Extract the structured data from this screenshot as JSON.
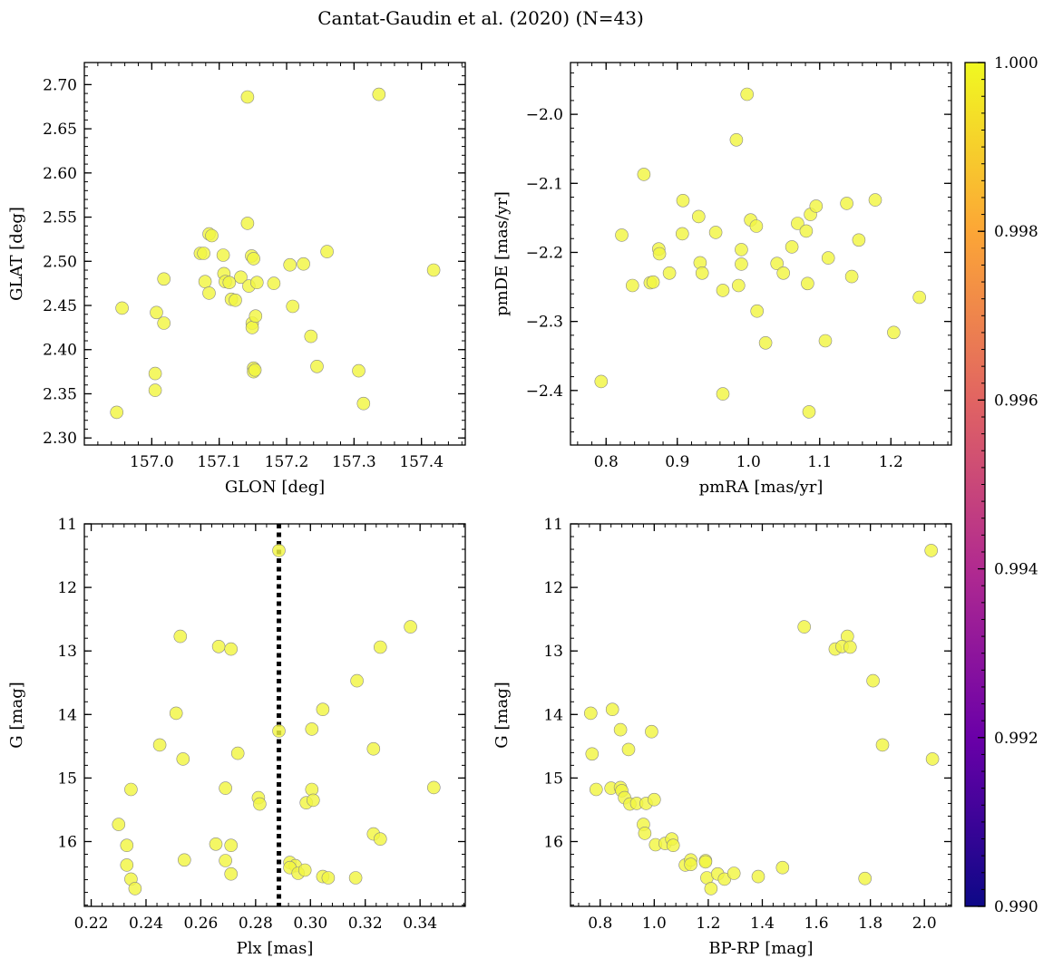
{
  "chart_data": {
    "type": "scatter",
    "title": "Cantat-Gaudin et al. (2020) (N=43)",
    "marker_color": "#f2f542",
    "marker_edge_color": "#888888",
    "colorbar": {
      "range": [
        0.99,
        1.0
      ],
      "ticks": [
        0.99,
        0.992,
        0.994,
        0.996,
        0.998,
        1.0
      ],
      "tick_labels": [
        "0.990",
        "0.992",
        "0.994",
        "0.996",
        "0.998",
        "1.000"
      ],
      "colormap": [
        "#0d0887",
        "#6a00a8",
        "#b12a90",
        "#e16462",
        "#fca636",
        "#f0f921"
      ]
    },
    "panels": [
      {
        "xlabel": "GLON [deg]",
        "ylabel": "GLAT [deg]",
        "xlim": [
          156.9,
          157.465
        ],
        "ylim": [
          2.292,
          2.725
        ],
        "y_inverted": false,
        "xticks": [
          157.0,
          157.1,
          157.2,
          157.3,
          157.4
        ],
        "xtick_labels": [
          "157.0",
          "157.1",
          "157.2",
          "157.3",
          "157.4"
        ],
        "yticks": [
          2.3,
          2.35,
          2.4,
          2.45,
          2.5,
          2.55,
          2.6,
          2.65,
          2.7
        ],
        "ytick_labels": [
          "2.30",
          "2.35",
          "2.40",
          "2.45",
          "2.50",
          "2.55",
          "2.60",
          "2.65",
          "2.70"
        ],
        "x_minor_step": 0.02,
        "y_minor_step": 0.01,
        "vline": null,
        "points": [
          [
            157.142,
            2.686
          ],
          [
            157.337,
            2.689
          ],
          [
            156.956,
            2.447
          ],
          [
            157.007,
            2.442
          ],
          [
            157.018,
            2.48
          ],
          [
            157.018,
            2.43
          ],
          [
            157.005,
            2.373
          ],
          [
            157.005,
            2.354
          ],
          [
            156.948,
            2.329
          ],
          [
            157.072,
            2.509
          ],
          [
            157.077,
            2.509
          ],
          [
            157.085,
            2.531
          ],
          [
            157.089,
            2.529
          ],
          [
            157.079,
            2.477
          ],
          [
            157.085,
            2.464
          ],
          [
            157.106,
            2.507
          ],
          [
            157.107,
            2.486
          ],
          [
            157.109,
            2.477
          ],
          [
            157.115,
            2.476
          ],
          [
            157.118,
            2.457
          ],
          [
            157.124,
            2.456
          ],
          [
            157.132,
            2.482
          ],
          [
            157.142,
            2.543
          ],
          [
            157.144,
            2.472
          ],
          [
            157.148,
            2.506
          ],
          [
            157.151,
            2.503
          ],
          [
            157.149,
            2.43
          ],
          [
            157.149,
            2.425
          ],
          [
            157.154,
            2.438
          ],
          [
            157.156,
            2.476
          ],
          [
            157.181,
            2.475
          ],
          [
            157.151,
            2.379
          ],
          [
            157.151,
            2.375
          ],
          [
            157.205,
            2.496
          ],
          [
            157.209,
            2.449
          ],
          [
            157.225,
            2.497
          ],
          [
            157.236,
            2.415
          ],
          [
            157.245,
            2.381
          ],
          [
            157.26,
            2.511
          ],
          [
            157.307,
            2.376
          ],
          [
            157.314,
            2.339
          ],
          [
            157.418,
            2.49
          ],
          [
            157.153,
            2.377
          ]
        ]
      },
      {
        "xlabel": "pmRA [mas/yr]",
        "ylabel": "pmDE [mas/yr]",
        "xlim": [
          0.75,
          1.285
        ],
        "ylim": [
          -2.479,
          -1.925
        ],
        "y_inverted": false,
        "xticks": [
          0.8,
          0.9,
          1.0,
          1.1,
          1.2
        ],
        "xtick_labels": [
          "0.8",
          "0.9",
          "1.0",
          "1.1",
          "1.2"
        ],
        "yticks": [
          -2.4,
          -2.3,
          -2.2,
          -2.1,
          -2.0
        ],
        "ytick_labels": [
          "−2.4",
          "−2.3",
          "−2.2",
          "−2.1",
          "−2.0"
        ],
        "x_minor_step": 0.02,
        "y_minor_step": 0.02,
        "vline": null,
        "points": [
          [
            0.998,
            -1.971
          ],
          [
            0.983,
            -2.037
          ],
          [
            0.853,
            -2.087
          ],
          [
            0.908,
            -2.125
          ],
          [
            0.822,
            -2.175
          ],
          [
            0.837,
            -2.248
          ],
          [
            0.862,
            -2.244
          ],
          [
            0.866,
            -2.243
          ],
          [
            0.874,
            -2.195
          ],
          [
            0.875,
            -2.202
          ],
          [
            0.889,
            -2.23
          ],
          [
            0.907,
            -2.173
          ],
          [
            0.93,
            -2.148
          ],
          [
            0.932,
            -2.215
          ],
          [
            0.935,
            -2.23
          ],
          [
            0.954,
            -2.171
          ],
          [
            0.964,
            -2.255
          ],
          [
            0.986,
            -2.248
          ],
          [
            0.99,
            -2.196
          ],
          [
            0.99,
            -2.217
          ],
          [
            1.003,
            -2.153
          ],
          [
            1.011,
            -2.162
          ],
          [
            1.012,
            -2.285
          ],
          [
            1.024,
            -2.331
          ],
          [
            1.04,
            -2.216
          ],
          [
            1.049,
            -2.23
          ],
          [
            1.061,
            -2.192
          ],
          [
            1.069,
            -2.158
          ],
          [
            1.081,
            -2.169
          ],
          [
            1.083,
            -2.245
          ],
          [
            1.087,
            -2.145
          ],
          [
            1.095,
            -2.133
          ],
          [
            1.108,
            -2.328
          ],
          [
            1.112,
            -2.208
          ],
          [
            1.138,
            -2.129
          ],
          [
            1.145,
            -2.235
          ],
          [
            1.155,
            -2.182
          ],
          [
            1.178,
            -2.124
          ],
          [
            1.204,
            -2.316
          ],
          [
            1.24,
            -2.265
          ],
          [
            0.793,
            -2.387
          ],
          [
            0.964,
            -2.405
          ],
          [
            1.085,
            -2.431
          ]
        ]
      },
      {
        "xlabel": "Plx [mas]",
        "ylabel": "G [mag]",
        "xlim": [
          0.2175,
          0.3565
        ],
        "ylim": [
          11.0,
          17.02
        ],
        "y_inverted": true,
        "xticks": [
          0.22,
          0.24,
          0.26,
          0.28,
          0.3,
          0.32,
          0.34
        ],
        "xtick_labels": [
          "0.22",
          "0.24",
          "0.26",
          "0.28",
          "0.30",
          "0.32",
          "0.34"
        ],
        "yticks": [
          11,
          12,
          13,
          14,
          15,
          16
        ],
        "ytick_labels": [
          "11",
          "12",
          "13",
          "14",
          "15",
          "16"
        ],
        "x_minor_step": 0.004,
        "y_minor_step": 0.2,
        "vline": 0.2885,
        "points": [
          [
            0.2885,
            11.42
          ],
          [
            0.3365,
            12.62
          ],
          [
            0.2525,
            12.77
          ],
          [
            0.2665,
            12.93
          ],
          [
            0.271,
            12.97
          ],
          [
            0.3255,
            12.94
          ],
          [
            0.317,
            13.47
          ],
          [
            0.3045,
            13.92
          ],
          [
            0.251,
            13.98
          ],
          [
            0.2885,
            14.26
          ],
          [
            0.3005,
            14.23
          ],
          [
            0.245,
            14.48
          ],
          [
            0.2535,
            14.7
          ],
          [
            0.2735,
            14.61
          ],
          [
            0.323,
            14.54
          ],
          [
            0.269,
            15.16
          ],
          [
            0.2345,
            15.18
          ],
          [
            0.3005,
            15.18
          ],
          [
            0.345,
            15.15
          ],
          [
            0.281,
            15.31
          ],
          [
            0.2815,
            15.41
          ],
          [
            0.2985,
            15.39
          ],
          [
            0.301,
            15.35
          ],
          [
            0.23,
            15.73
          ],
          [
            0.233,
            16.06
          ],
          [
            0.2655,
            16.04
          ],
          [
            0.271,
            16.06
          ],
          [
            0.323,
            15.88
          ],
          [
            0.3255,
            15.96
          ],
          [
            0.254,
            16.29
          ],
          [
            0.269,
            16.3
          ],
          [
            0.2925,
            16.33
          ],
          [
            0.2945,
            16.38
          ],
          [
            0.2925,
            16.41
          ],
          [
            0.233,
            16.37
          ],
          [
            0.271,
            16.51
          ],
          [
            0.2955,
            16.5
          ],
          [
            0.3045,
            16.55
          ],
          [
            0.3065,
            16.57
          ],
          [
            0.3165,
            16.57
          ],
          [
            0.2345,
            16.59
          ],
          [
            0.236,
            16.74
          ],
          [
            0.298,
            16.45
          ]
        ]
      },
      {
        "xlabel": "BP-RP [mag]",
        "ylabel": "G [mag]",
        "xlim": [
          0.69,
          2.1
        ],
        "ylim": [
          11.0,
          17.02
        ],
        "y_inverted": true,
        "xticks": [
          0.8,
          1.0,
          1.2,
          1.4,
          1.6,
          1.8,
          2.0
        ],
        "xtick_labels": [
          "0.8",
          "1.0",
          "1.2",
          "1.4",
          "1.6",
          "1.8",
          "2.0"
        ],
        "yticks": [
          11,
          12,
          13,
          14,
          15,
          16
        ],
        "ytick_labels": [
          "11",
          "12",
          "13",
          "14",
          "15",
          "16"
        ],
        "x_minor_step": 0.04,
        "y_minor_step": 0.2,
        "vline": null,
        "points": [
          [
            2.025,
            11.42
          ],
          [
            1.555,
            12.62
          ],
          [
            1.715,
            12.77
          ],
          [
            1.67,
            12.97
          ],
          [
            1.695,
            12.93
          ],
          [
            1.725,
            12.94
          ],
          [
            1.81,
            13.47
          ],
          [
            0.845,
            13.92
          ],
          [
            0.765,
            13.98
          ],
          [
            0.875,
            14.24
          ],
          [
            0.99,
            14.27
          ],
          [
            0.77,
            14.62
          ],
          [
            0.905,
            14.55
          ],
          [
            1.845,
            14.48
          ],
          [
            2.03,
            14.7
          ],
          [
            0.785,
            15.18
          ],
          [
            0.84,
            15.16
          ],
          [
            0.875,
            15.15
          ],
          [
            0.88,
            15.2
          ],
          [
            0.89,
            15.31
          ],
          [
            0.91,
            15.41
          ],
          [
            0.935,
            15.4
          ],
          [
            0.97,
            15.4
          ],
          [
            1.0,
            15.34
          ],
          [
            0.96,
            15.73
          ],
          [
            0.965,
            15.87
          ],
          [
            1.005,
            16.05
          ],
          [
            1.04,
            16.03
          ],
          [
            1.065,
            15.96
          ],
          [
            1.07,
            16.06
          ],
          [
            1.115,
            16.37
          ],
          [
            1.135,
            16.29
          ],
          [
            1.135,
            16.36
          ],
          [
            1.19,
            16.3
          ],
          [
            1.19,
            16.32
          ],
          [
            1.195,
            16.57
          ],
          [
            1.21,
            16.74
          ],
          [
            1.235,
            16.51
          ],
          [
            1.26,
            16.59
          ],
          [
            1.295,
            16.5
          ],
          [
            1.385,
            16.55
          ],
          [
            1.475,
            16.41
          ],
          [
            1.78,
            16.58
          ]
        ]
      }
    ]
  }
}
